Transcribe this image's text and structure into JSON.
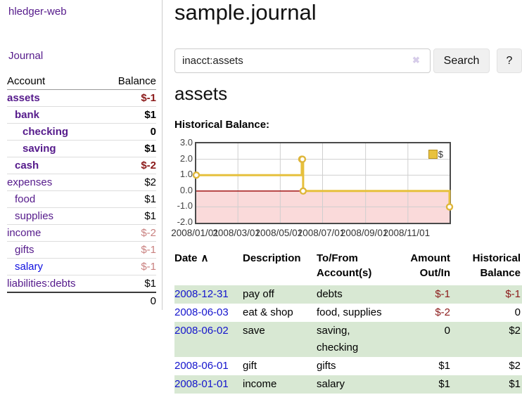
{
  "app": {
    "brand": "hledger-web",
    "nav_journal": "Journal"
  },
  "sidebar": {
    "columns": {
      "account": "Account",
      "balance": "Balance"
    },
    "accounts": [
      {
        "name": "assets",
        "indent": 1,
        "bold": true,
        "balance": "$-1",
        "neg": "strong"
      },
      {
        "name": "bank",
        "indent": 2,
        "bold": true,
        "balance": "$1"
      },
      {
        "name": "checking",
        "indent": 3,
        "bold": true,
        "balance": "0"
      },
      {
        "name": "saving",
        "indent": 3,
        "bold": true,
        "balance": "$1"
      },
      {
        "name": "cash",
        "indent": 2,
        "bold": true,
        "balance": "$-2",
        "neg": "strong"
      },
      {
        "name": "expenses",
        "indent": 1,
        "bold": false,
        "balance": "$2"
      },
      {
        "name": "food",
        "indent": 2,
        "bold": false,
        "balance": "$1"
      },
      {
        "name": "supplies",
        "indent": 2,
        "bold": false,
        "balance": "$1"
      },
      {
        "name": "income",
        "indent": 1,
        "bold": false,
        "balance": "$-2",
        "neg": "soft"
      },
      {
        "name": "gifts",
        "indent": 2,
        "bold": false,
        "balance": "$-1",
        "neg": "soft"
      },
      {
        "name": "salary",
        "indent": 2,
        "bold": false,
        "balance": "$-1",
        "neg": "soft",
        "link_style": "unvisited"
      },
      {
        "name": "liabilities:debts",
        "indent": 1,
        "bold": false,
        "balance": "$1"
      }
    ],
    "total": "0"
  },
  "header": {
    "title": "sample.journal"
  },
  "search": {
    "value": "inacct:assets",
    "clear_icon": "✖",
    "button_label": "Search",
    "help_label": "?"
  },
  "account_page": {
    "heading": "assets",
    "chart_label": "Historical Balance:"
  },
  "chart_data": {
    "type": "line",
    "step": true,
    "title": "Historical Balance",
    "series": [
      {
        "name": "$",
        "color": "#e6c03d",
        "points": [
          [
            "2008-01-01",
            1
          ],
          [
            "2008-06-01",
            2
          ],
          [
            "2008-06-02",
            2
          ],
          [
            "2008-06-03",
            0
          ],
          [
            "2008-12-31",
            -1
          ]
        ]
      }
    ],
    "x_ticks": [
      "2008/01/01",
      "2008/03/01",
      "2008/05/01",
      "2008/07/01",
      "2008/09/01",
      "2008/11/01"
    ],
    "y_ticks": [
      "3.0",
      "2.0",
      "1.0",
      "0.0",
      "-1.0",
      "-2.0"
    ],
    "ylim": [
      -2,
      3
    ],
    "xlim": [
      "2008-01-01",
      "2008-12-31"
    ],
    "grid": true,
    "negative_region_color": "#fadada",
    "zero_line_color": "#990000",
    "legend": {
      "label": "$",
      "position": "top-right"
    }
  },
  "register": {
    "columns": {
      "date": "Date",
      "description": "Description",
      "tofrom": "To/From\nAccount(s)",
      "amount": "Amount\nOut/In",
      "balance": "Historical\nBalance"
    },
    "sort_icon": "∧",
    "rows": [
      {
        "date": "2008-12-31",
        "description": "pay off",
        "tofrom": "debts",
        "amount": "$-1",
        "amount_neg": true,
        "balance": "$-1",
        "balance_neg": true
      },
      {
        "date": "2008-06-03",
        "description": "eat & shop",
        "tofrom": "food, supplies",
        "amount": "$-2",
        "amount_neg": true,
        "balance": "0",
        "balance_neg": false
      },
      {
        "date": "2008-06-02",
        "description": "save",
        "tofrom": "saving,\nchecking",
        "amount": "0",
        "amount_neg": false,
        "balance": "$2",
        "balance_neg": false
      },
      {
        "date": "2008-06-01",
        "description": "gift",
        "tofrom": "gifts",
        "amount": "$1",
        "amount_neg": false,
        "balance": "$2",
        "balance_neg": false
      },
      {
        "date": "2008-01-01",
        "description": "income",
        "tofrom": "salary",
        "amount": "$1",
        "amount_neg": false,
        "balance": "$1",
        "balance_neg": false
      }
    ]
  }
}
